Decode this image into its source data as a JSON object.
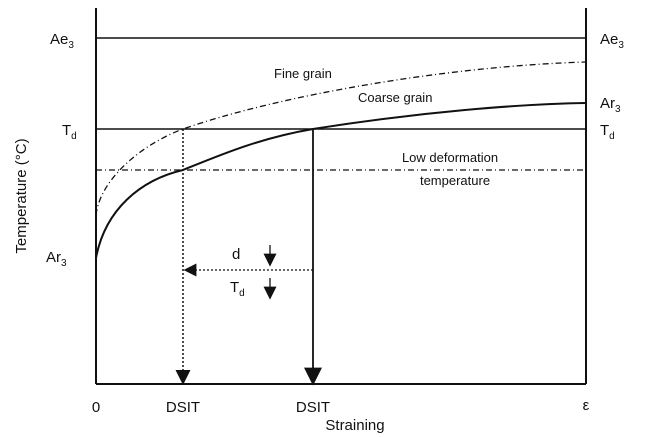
{
  "axes": {
    "y_label": "Temperature (°C)",
    "x_label": "Straining",
    "origin": "0",
    "x_end": "ε"
  },
  "left_labels": [
    {
      "main": "Ae",
      "sub": "3"
    },
    {
      "main": "T",
      "sub": "d"
    },
    {
      "main": "Ar",
      "sub": "3"
    }
  ],
  "right_labels": [
    {
      "main": "Ae",
      "sub": "3"
    },
    {
      "main": "T",
      "sub": "d"
    },
    {
      "main": "Ar",
      "sub": "3"
    }
  ],
  "curves": {
    "fine": "Fine grain",
    "coarse": "Coarse grain"
  },
  "low_deformation": [
    "Low deformation",
    "temperature"
  ],
  "arrow_labels": {
    "d": "d",
    "td": {
      "main": "T",
      "sub": "d"
    }
  },
  "dsit": [
    "DSIT",
    "DSIT"
  ]
}
